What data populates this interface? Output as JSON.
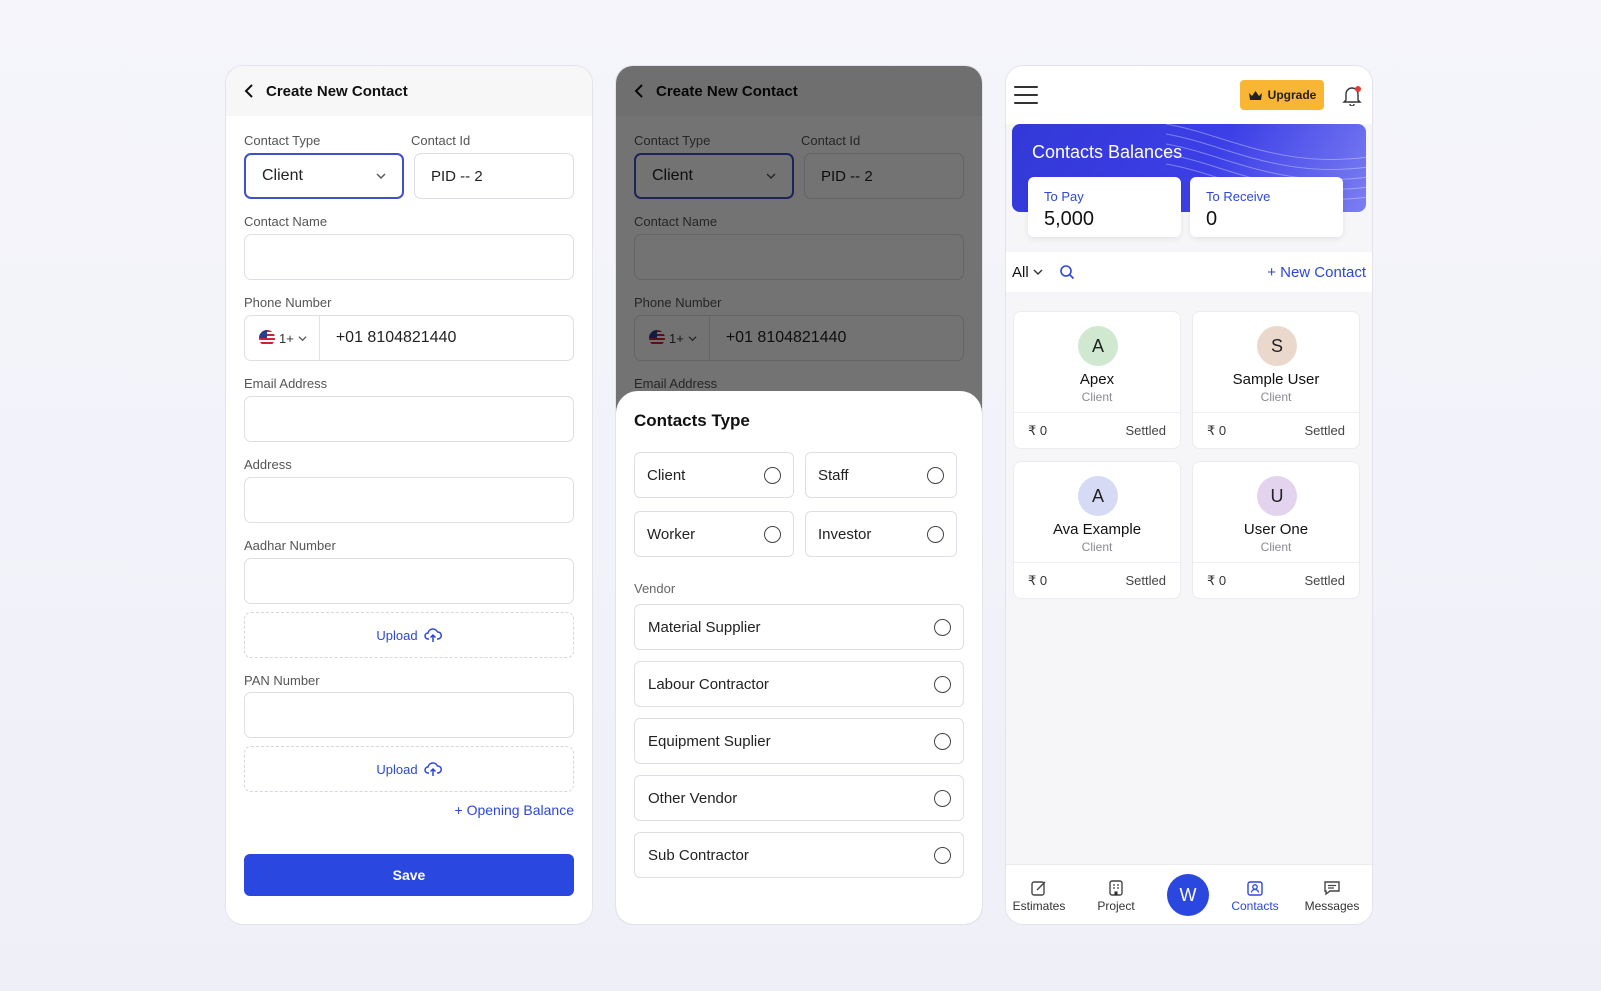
{
  "create_form": {
    "title": "Create New Contact",
    "contact_type_label": "Contact Type",
    "contact_type_value": "Client",
    "contact_id_label": "Contact Id",
    "contact_id_value": "PID -- 2",
    "contact_name_label": "Contact Name",
    "phone_label": "Phone Number",
    "phone_cc": "1+",
    "phone_value": "+01 8104821440",
    "email_label": "Email Address",
    "address_label": "Address",
    "aadhar_label": "Aadhar Number",
    "upload_label": "Upload",
    "pan_label": "PAN Number",
    "opening_balance": "+ Opening Balance",
    "save_label": "Save"
  },
  "type_sheet": {
    "title": "Contacts Type",
    "options": [
      "Client",
      "Staff",
      "Worker",
      "Investor"
    ],
    "vendor_label": "Vendor",
    "vendor_options": [
      "Material Supplier",
      "Labour Contractor",
      "Equipment Suplier",
      "Other Vendor",
      "Sub Contractor"
    ]
  },
  "contacts_screen": {
    "upgrade_label": "Upgrade",
    "balances_title": "Contacts Balances",
    "to_pay_label": "To Pay",
    "to_pay_value": "5,000",
    "to_receive_label": "To Receive",
    "to_receive_value": "0",
    "filter_all": "All",
    "new_contact": "+ New Contact",
    "contacts": [
      {
        "initial": "A",
        "name": "Apex",
        "type": "Client",
        "amount": "₹ 0",
        "status": "Settled",
        "color": "#cfe8cf"
      },
      {
        "initial": "S",
        "name": "Sample User",
        "type": "Client",
        "amount": "₹ 0",
        "status": "Settled",
        "color": "#ead8cc"
      },
      {
        "initial": "A",
        "name": "Ava Example",
        "type": "Client",
        "amount": "₹ 0",
        "status": "Settled",
        "color": "#d6daf5"
      },
      {
        "initial": "U",
        "name": "User One",
        "type": "Client",
        "amount": "₹ 0",
        "status": "Settled",
        "color": "#e3d3ee"
      }
    ],
    "nav": {
      "estimates": "Estimates",
      "project": "Project",
      "center": "W",
      "contacts": "Contacts",
      "messages": "Messages"
    }
  },
  "colors": {
    "accent": "#2a47e0",
    "upgrade": "#f9b634"
  }
}
